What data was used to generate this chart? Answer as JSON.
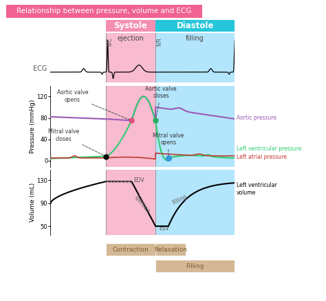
{
  "title": "Relationship between pressure, volume and ECG",
  "title_bg": "#f06292",
  "title_text_color": "white",
  "systole_color": "#f8bbd0",
  "diastole_color": "#b3e5fc",
  "systole_label": "Systole",
  "diastole_label": "Diastole",
  "systole_header_color": "#f48fb1",
  "diastole_header_color": "#26c6da",
  "ivc_label": "IVC",
  "ivr_label": "IVR",
  "ejection_label": "ejection",
  "filling_label": "filling",
  "phases_bottom": [
    "Contraction",
    "Relaxation",
    "Filling"
  ],
  "phases_bottom_color": "#d4b896",
  "phases_bottom_text_color": "#7a5c2e",
  "pressure_ylabel": "Pressure (mmHg)",
  "volume_ylabel": "Volume (mL)",
  "pressure_yticks": [
    0,
    40,
    80,
    120
  ],
  "volume_yticks": [
    50,
    90,
    130
  ],
  "aortic_pressure_color": "#9b59b6",
  "lv_pressure_color": "#2ecc71",
  "la_pressure_color": "#c0392b",
  "ecg_color": "black",
  "volume_color": "black",
  "aortic_label": "Aortic pressure",
  "lv_label": "Left ventricular pressure",
  "la_label": "Left atrial pressure",
  "lv_vol_label": "Left ventricular\nvolume",
  "ecg_label": "ECG",
  "edv_label": "EDV",
  "esv_label": "ESV",
  "ejection_curve_label": "Ejection",
  "filling_curve_label": "Filling",
  "aortic_valve_opens_label": "Aortic valve\nopens",
  "aortic_valve_closes_label": "Aortic valve\ncloses",
  "mitral_valve_closes_label": "Mitral valve\ncloses",
  "mitral_valve_opens_label": "Mitral valve\nopens",
  "t1": 0.3,
  "t2": 0.44,
  "t3": 0.57,
  "t4": 0.64,
  "t5": 1.0,
  "background_color": "white"
}
